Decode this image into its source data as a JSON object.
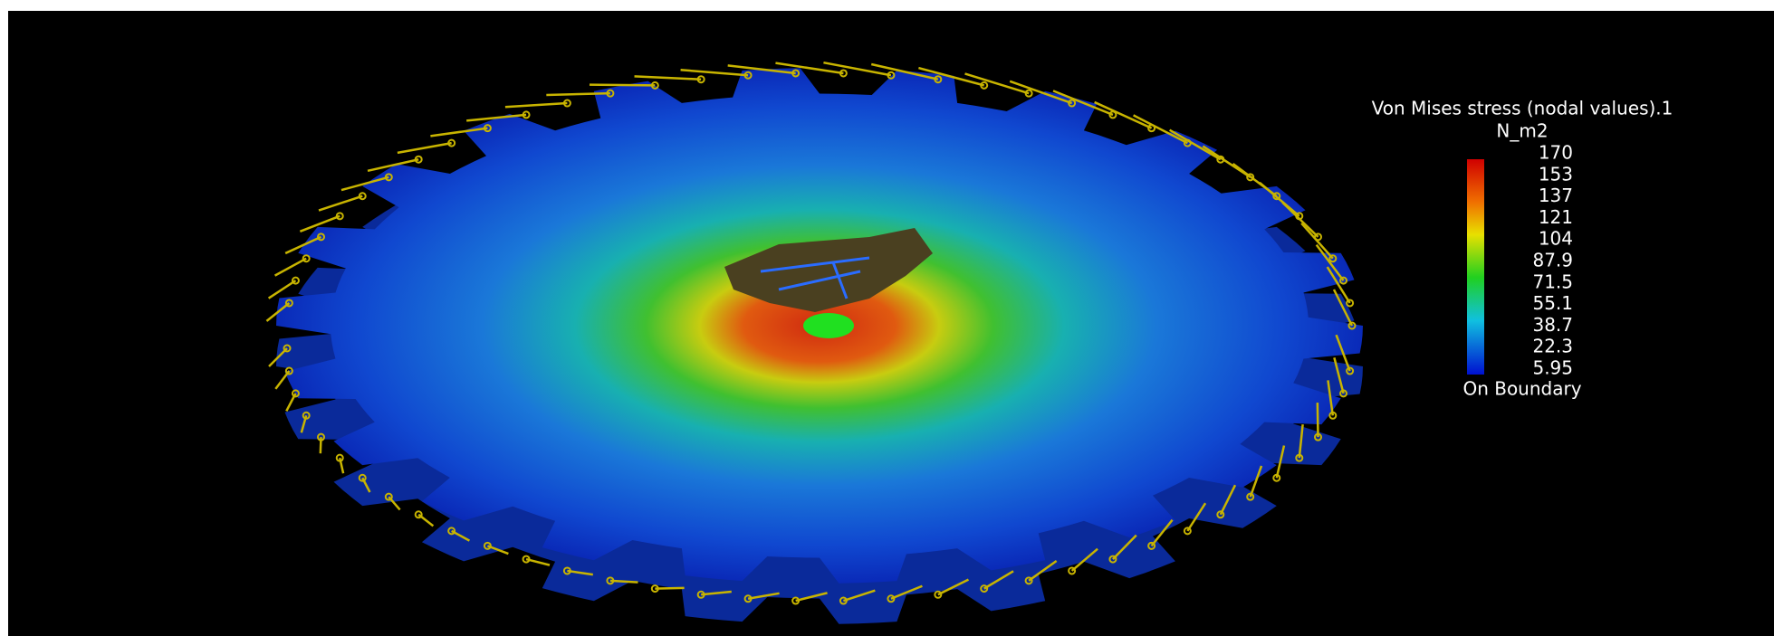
{
  "legend": {
    "title": "Von Mises stress (nodal values).1",
    "unit": "N_m2",
    "values": [
      170,
      153,
      137,
      121,
      104,
      87.9,
      71.5,
      55.1,
      38.7,
      22.3,
      5.95
    ],
    "note": "On Boundary"
  }
}
